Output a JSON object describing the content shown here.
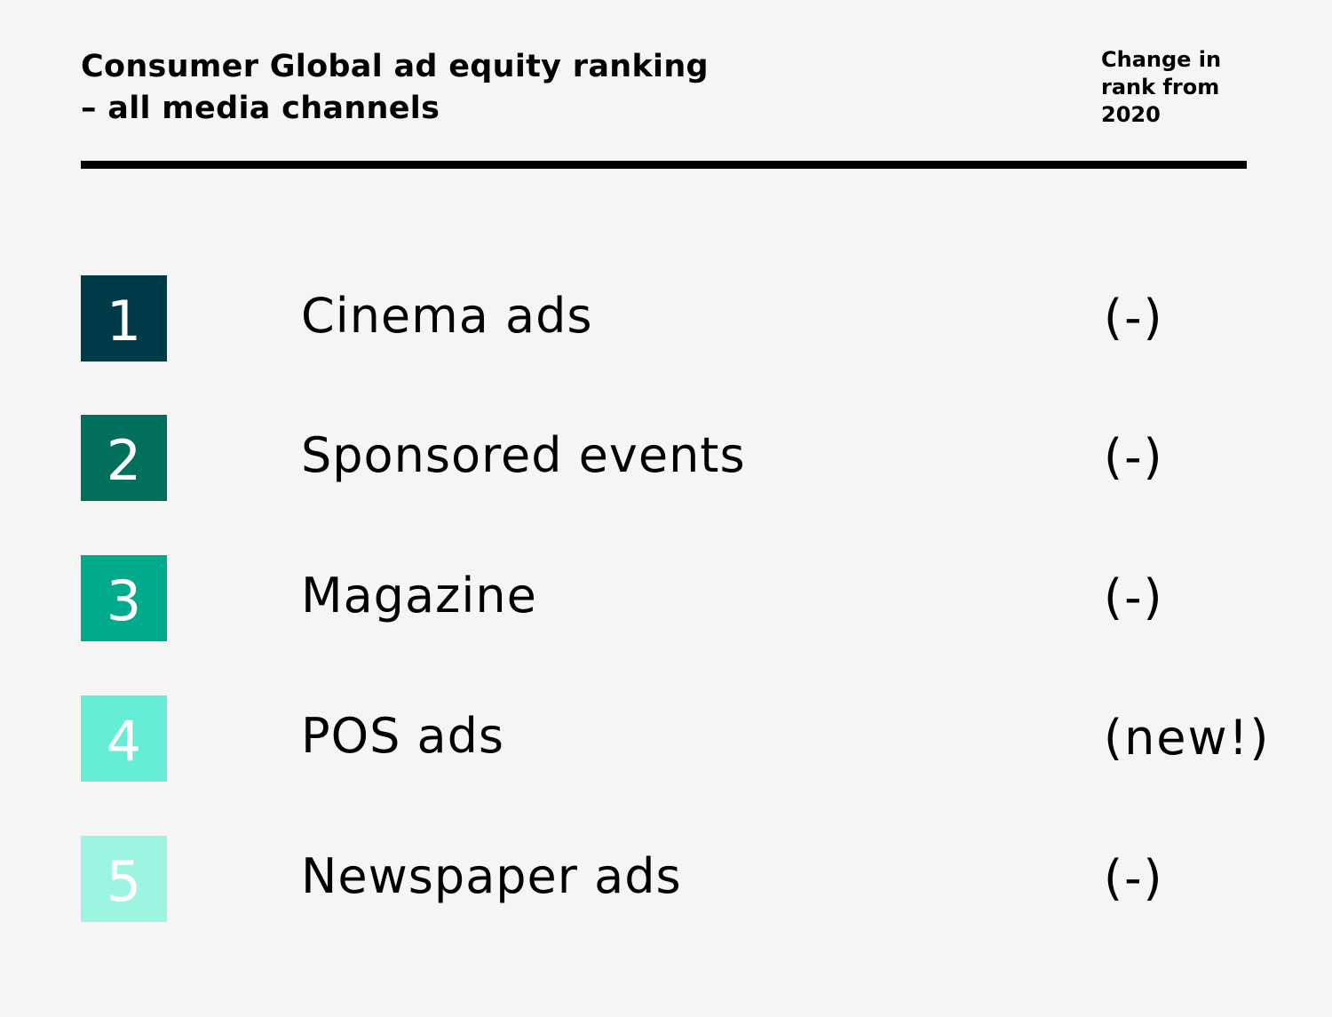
{
  "header": {
    "title_line1": "Consumer Global ad equity ranking",
    "title_line2": "– all media channels",
    "change_line1": "Change in",
    "change_line2": "rank from",
    "change_line3": "2020"
  },
  "ranking": [
    {
      "rank": "1",
      "channel": "Cinema ads",
      "change": "(-)",
      "color": "#003a47"
    },
    {
      "rank": "2",
      "channel": "Sponsored events",
      "change": "(-)",
      "color": "#00705c"
    },
    {
      "rank": "3",
      "channel": "Magazine",
      "change": "(-)",
      "color": "#00ab8c"
    },
    {
      "rank": "4",
      "channel": "POS ads",
      "change": "(new!)",
      "color": "#66edd6"
    },
    {
      "rank": "5",
      "channel": "Newspaper ads",
      "change": "(-)",
      "color": "#9cf4e2"
    }
  ]
}
